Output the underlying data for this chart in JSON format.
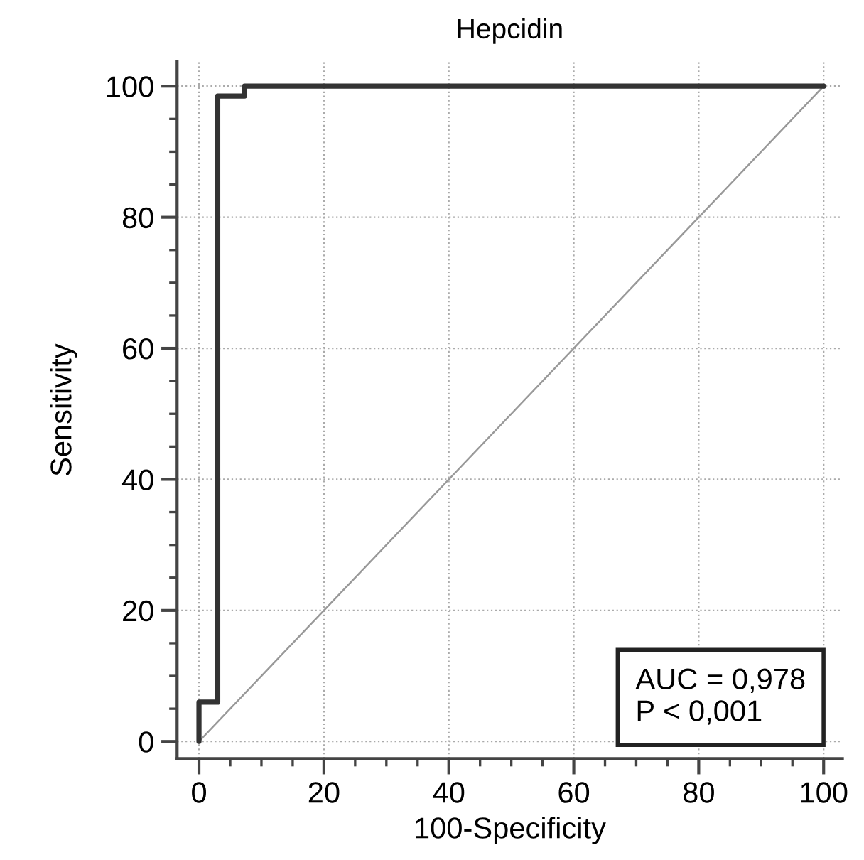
{
  "chart_data": {
    "type": "step",
    "title": "Hepcidin",
    "xlabel": "100-Specificity",
    "ylabel": "Sensitivity",
    "series": [
      {
        "color": "#333333",
        "x": [
          0,
          0,
          3,
          3,
          7.3,
          7.3,
          100
        ],
        "values": [
          0,
          6,
          6,
          98.5,
          98.5,
          100,
          100
        ]
      },
      {
        "type": "line",
        "color": "#999999",
        "x": [
          0,
          100
        ],
        "values": [
          0,
          100
        ]
      }
    ],
    "xlim": [
      -3.5,
      103
    ],
    "ylim": [
      -2.6,
      103.7
    ],
    "xticks": [
      0,
      20,
      40,
      60,
      80,
      100
    ],
    "yticks": [
      0,
      20,
      40,
      60,
      80,
      100
    ],
    "grid": true,
    "annotations": [
      "AUC = 0,978\nP < 0,001"
    ]
  }
}
